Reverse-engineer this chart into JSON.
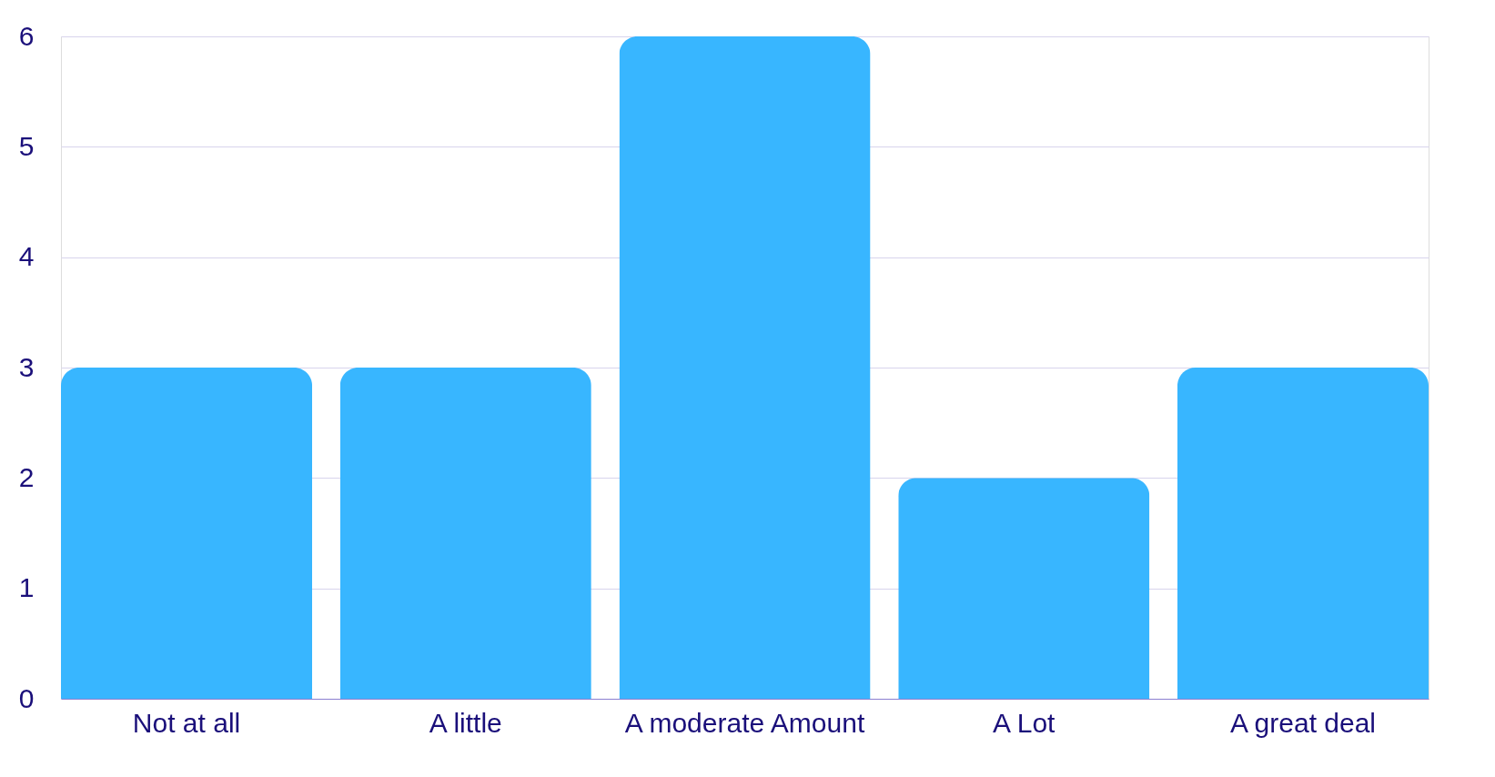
{
  "chart_data": {
    "type": "bar",
    "categories": [
      "Not at all",
      "A little",
      "A moderate Amount",
      "A Lot",
      "A great deal"
    ],
    "values": [
      3,
      3,
      6,
      2,
      3
    ],
    "color": "#38b6ff",
    "ylim": [
      0,
      6
    ],
    "yticks": [
      0,
      1,
      2,
      3,
      4,
      5,
      6
    ],
    "grid": "y"
  }
}
